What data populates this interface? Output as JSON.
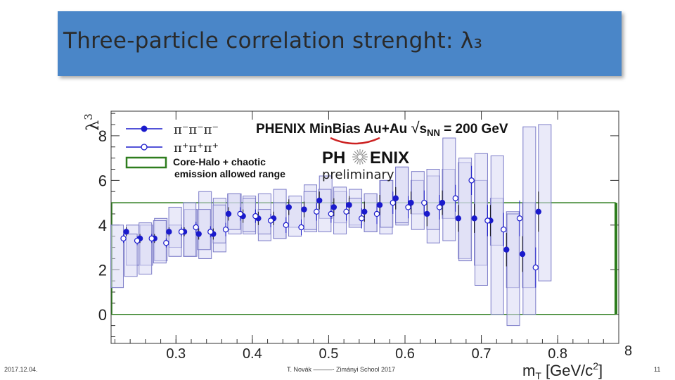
{
  "slide": {
    "title": "Three-particle correlation strenght: λ₃",
    "footer_date": "2017.12.04.",
    "footer_center": "T. Novák ———- Zimányi School 2017",
    "page_number": "11"
  },
  "chart_data": {
    "type": "scatter",
    "title": "PHENIX MinBias Au+Au √sNN = 200 GeV",
    "title_parts": {
      "main": "PHENIX MinBias Au+Au ",
      "sqrt_sym": "√",
      "s": "s",
      "sub": "NN",
      "eq": " = 200 GeV"
    },
    "logo_text": {
      "left": "PH",
      "right": "ENIX",
      "sub": "preliminary"
    },
    "ylabel": "λ3",
    "ylabel_parts": {
      "main": "λ",
      "sub": "3"
    },
    "xlabel": "mT [GeV/c²]",
    "xlabel_parts": {
      "m": "m",
      "sub": "T",
      "unit": " [GeV/c",
      "sup": "2",
      "end": "]"
    },
    "xlim": [
      0.215,
      0.88
    ],
    "ylim": [
      -1.3,
      9.1
    ],
    "x_ticks": [
      "0.3",
      "0.4",
      "0.5",
      "0.6",
      "0.7",
      "0.8"
    ],
    "x_tick_values": [
      0.3,
      0.4,
      0.5,
      0.6,
      0.7,
      0.8
    ],
    "x_edge_label": "8",
    "y_ticks": [
      "0",
      "2",
      "4",
      "6",
      "8"
    ],
    "y_tick_values": [
      0,
      2,
      4,
      6,
      8
    ],
    "band": {
      "ymin": 0,
      "ymax": 5.0,
      "label_line1": "Core-Halo + chaotic",
      "label_line2": "emission allowed range"
    },
    "colors": {
      "series": "#1a1acc",
      "syst_fill": "#d8d8f4",
      "syst_edge": "#7c7cc8",
      "band": "#2e7d1e",
      "axis": "#333333"
    },
    "legend": {
      "position": "top-left",
      "entries": [
        "π⁻π⁻π⁻",
        "π⁺π⁺π⁺"
      ]
    },
    "series": [
      {
        "name": "π⁻π⁻π⁻",
        "marker": "filled",
        "x": [
          0.233,
          0.251,
          0.27,
          0.289,
          0.309,
          0.328,
          0.347,
          0.367,
          0.386,
          0.406,
          0.426,
          0.446,
          0.466,
          0.486,
          0.505,
          0.525,
          0.545,
          0.565,
          0.586,
          0.606,
          0.627,
          0.647,
          0.668,
          0.689,
          0.71,
          0.731,
          0.752,
          0.773
        ],
        "y": [
          3.7,
          3.4,
          3.4,
          3.7,
          3.7,
          3.6,
          3.6,
          4.5,
          4.4,
          4.3,
          4.3,
          4.8,
          4.7,
          5.1,
          4.8,
          4.9,
          4.6,
          4.9,
          5.2,
          5.0,
          4.5,
          5.0,
          4.3,
          4.3,
          4.2,
          2.9,
          2.7,
          4.6
        ],
        "err": [
          0.2,
          0.2,
          0.2,
          0.2,
          0.2,
          0.25,
          0.25,
          0.3,
          0.3,
          0.3,
          0.3,
          0.35,
          0.35,
          0.4,
          0.4,
          0.4,
          0.45,
          0.45,
          0.5,
          0.5,
          0.55,
          0.55,
          0.6,
          0.65,
          0.7,
          0.75,
          0.8,
          0.9
        ],
        "syst": [
          [
            2.2,
            4.0
          ],
          [
            2.2,
            4.0
          ],
          [
            2.4,
            4.3
          ],
          [
            3.0,
            4.0
          ],
          [
            2.6,
            4.7
          ],
          [
            2.5,
            5.5
          ],
          [
            2.8,
            5.2
          ],
          [
            3.6,
            5.4
          ],
          [
            3.6,
            5.3
          ],
          [
            3.3,
            5.4
          ],
          [
            3.4,
            5.6
          ],
          [
            3.9,
            5.3
          ],
          [
            3.7,
            5.8
          ],
          [
            4.3,
            6.2
          ],
          [
            4.1,
            5.5
          ],
          [
            4.0,
            5.6
          ],
          [
            3.7,
            5.4
          ],
          [
            3.6,
            6.0
          ],
          [
            4.0,
            6.6
          ],
          [
            4.5,
            6.0
          ],
          [
            3.2,
            6.2
          ],
          [
            4.3,
            6.5
          ],
          [
            2.5,
            6.8
          ],
          [
            2.2,
            6.0
          ],
          [
            3.1,
            5.2
          ],
          [
            1.2,
            4.6
          ],
          [
            1.2,
            5.0
          ],
          [
            1.5,
            8.5
          ]
        ]
      },
      {
        "name": "π⁺π⁺π⁺",
        "marker": "open",
        "x": [
          0.233,
          0.251,
          0.27,
          0.289,
          0.309,
          0.328,
          0.347,
          0.367,
          0.386,
          0.406,
          0.426,
          0.446,
          0.466,
          0.486,
          0.505,
          0.525,
          0.545,
          0.565,
          0.586,
          0.606,
          0.627,
          0.647,
          0.668,
          0.689,
          0.71,
          0.731,
          0.752,
          0.773
        ],
        "y": [
          3.4,
          3.3,
          3.4,
          3.2,
          3.7,
          3.9,
          3.7,
          3.8,
          4.5,
          4.4,
          4.2,
          4.0,
          3.9,
          4.6,
          4.5,
          4.6,
          4.3,
          4.5,
          5.0,
          4.8,
          5.0,
          4.8,
          5.2,
          6.0,
          4.2,
          3.8,
          4.3,
          2.1
        ],
        "err": [
          0.2,
          0.2,
          0.2,
          0.2,
          0.2,
          0.25,
          0.25,
          0.3,
          0.3,
          0.3,
          0.3,
          0.35,
          0.35,
          0.4,
          0.4,
          0.4,
          0.45,
          0.45,
          0.5,
          0.5,
          0.55,
          0.55,
          0.6,
          0.65,
          0.7,
          0.75,
          0.8,
          0.9
        ],
        "syst": [
          [
            1.2,
            4.0
          ],
          [
            1.7,
            3.6
          ],
          [
            1.8,
            4.1
          ],
          [
            2.3,
            4.2
          ],
          [
            2.6,
            4.8
          ],
          [
            2.6,
            5.0
          ],
          [
            2.9,
            4.7
          ],
          [
            3.2,
            4.9
          ],
          [
            3.8,
            5.4
          ],
          [
            3.7,
            5.2
          ],
          [
            3.6,
            4.7
          ],
          [
            3.4,
            5.0
          ],
          [
            3.5,
            5.0
          ],
          [
            3.8,
            5.5
          ],
          [
            3.7,
            5.6
          ],
          [
            3.6,
            5.7
          ],
          [
            3.9,
            5.2
          ],
          [
            3.7,
            5.4
          ],
          [
            3.9,
            6.0
          ],
          [
            4.1,
            6.6
          ],
          [
            3.8,
            6.4
          ],
          [
            3.8,
            6.5
          ],
          [
            3.3,
            7.9
          ],
          [
            2.4,
            7.0
          ],
          [
            1.3,
            7.2
          ],
          [
            0.0,
            7.1
          ],
          [
            -0.5,
            4.5
          ],
          [
            0.0,
            8.4
          ]
        ]
      }
    ]
  }
}
